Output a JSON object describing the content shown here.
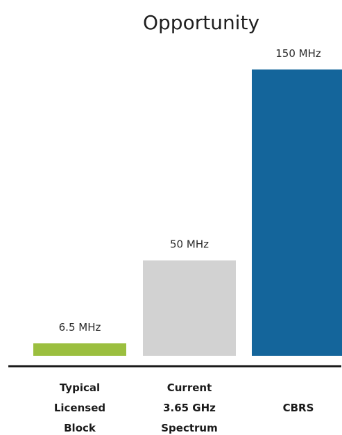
{
  "chart_data": {
    "type": "bar",
    "title": "Opportunity",
    "xlabel": "",
    "ylabel": "",
    "ylim": [
      0,
      150
    ],
    "grid": false,
    "legend": "none",
    "categories": [
      [
        "Typical",
        "Licensed",
        "Block"
      ],
      [
        "Current",
        "3.65 GHz",
        "Spectrum"
      ],
      [
        "CBRS"
      ]
    ],
    "values": [
      6.5,
      50,
      150
    ],
    "value_labels": [
      "6.5 MHz",
      "50 MHz",
      "150 MHz"
    ],
    "colors": [
      "#9bbf3f",
      "#d2d2d2",
      "#14659b"
    ],
    "axis_color": "#1a1a1a"
  }
}
